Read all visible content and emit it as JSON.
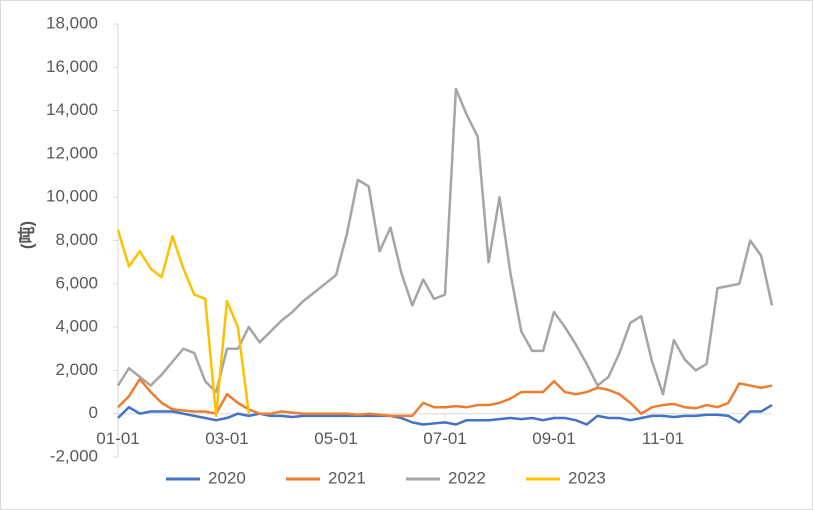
{
  "chart_data": {
    "type": "line",
    "y_label": "(吨)",
    "categories": [
      "01-01",
      null,
      null,
      null,
      null,
      null,
      null,
      null,
      null,
      null,
      "03-01",
      null,
      null,
      null,
      null,
      null,
      null,
      null,
      null,
      null,
      "05-01",
      null,
      null,
      null,
      null,
      null,
      null,
      null,
      null,
      null,
      "07-01",
      null,
      null,
      null,
      null,
      null,
      null,
      null,
      null,
      null,
      "09-01",
      null,
      null,
      null,
      null,
      null,
      null,
      null,
      null,
      null,
      "11-01",
      null,
      null,
      null,
      null,
      null,
      null,
      null,
      null,
      null,
      null
    ],
    "series": [
      {
        "name": "2020",
        "color": "#4472c4",
        "values": [
          -200,
          300,
          0,
          100,
          100,
          100,
          0,
          -100,
          -200,
          -300,
          -200,
          0,
          -100,
          0,
          -100,
          -100,
          -150,
          -100,
          -100,
          -100,
          -100,
          -100,
          -100,
          -100,
          -100,
          -100,
          -200,
          -400,
          -500,
          -450,
          -400,
          -500,
          -300,
          -300,
          -300,
          -250,
          -200,
          -250,
          -200,
          -300,
          -200,
          -200,
          -300,
          -500,
          -100,
          -200,
          -200,
          -300,
          -200,
          -100,
          -100,
          -150,
          -100,
          -100,
          -50,
          -50,
          -100,
          -400,
          100,
          100,
          400
        ]
      },
      {
        "name": "2021",
        "color": "#ed7d31",
        "values": [
          300,
          800,
          1600,
          1000,
          500,
          200,
          150,
          100,
          100,
          0,
          900,
          500,
          200,
          0,
          0,
          100,
          50,
          0,
          0,
          0,
          0,
          0,
          -50,
          0,
          -50,
          -100,
          -100,
          -100,
          500,
          300,
          300,
          350,
          300,
          400,
          400,
          500,
          700,
          1000,
          1000,
          1000,
          1500,
          1000,
          900,
          1000,
          1200,
          1100,
          900,
          500,
          0,
          300,
          400,
          450,
          300,
          250,
          400,
          300,
          500,
          1400,
          1300,
          1200,
          1300
        ]
      },
      {
        "name": "2022",
        "color": "#a5a5a5",
        "values": [
          1300,
          2100,
          1700,
          1300,
          1800,
          2400,
          3000,
          2800,
          1500,
          1000,
          3000,
          3000,
          4000,
          3300,
          3800,
          4300,
          4700,
          5200,
          5600,
          6000,
          6400,
          8300,
          10800,
          10500,
          7500,
          8600,
          6500,
          5000,
          6200,
          5300,
          5500,
          15000,
          13800,
          12800,
          7000,
          10000,
          6500,
          3800,
          2900,
          2900,
          4700,
          4000,
          3200,
          2300,
          1300,
          1700,
          2800,
          4200,
          4500,
          2400,
          900,
          3400,
          2500,
          2000,
          2300,
          5800,
          5900,
          6000,
          8000,
          7300,
          5000
        ]
      },
      {
        "name": "2023",
        "color": "#ffc000",
        "values": [
          8500,
          6800,
          7500,
          6700,
          6300,
          8200,
          6700,
          5500,
          5300,
          -100,
          5200,
          4000,
          0,
          null,
          null,
          null,
          null,
          null,
          null,
          null,
          null,
          null,
          null,
          null,
          null,
          null,
          null,
          null,
          null,
          null,
          null,
          null,
          null,
          null,
          null,
          null,
          null,
          null,
          null,
          null,
          null,
          null,
          null,
          null,
          null,
          null,
          null,
          null,
          null,
          null,
          null,
          null,
          null,
          null,
          null,
          null,
          null,
          null,
          null,
          null,
          null
        ]
      }
    ],
    "ylim": [
      -2000,
      18000
    ],
    "yticks": [
      {
        "value": -2000,
        "label": "-2,000"
      },
      0,
      {
        "value": 2000,
        "label": "2,000"
      },
      {
        "value": 4000,
        "label": "4,000"
      },
      {
        "value": 6000,
        "label": "6,000"
      },
      {
        "value": 8000,
        "label": "8,000"
      },
      {
        "value": 10000,
        "label": "10,000"
      },
      {
        "value": 12000,
        "label": "12,000"
      },
      {
        "value": 14000,
        "label": "14,000"
      },
      {
        "value": 16000,
        "label": "16,000"
      },
      {
        "value": 18000,
        "label": "18,000"
      }
    ],
    "legend": "bottom"
  }
}
